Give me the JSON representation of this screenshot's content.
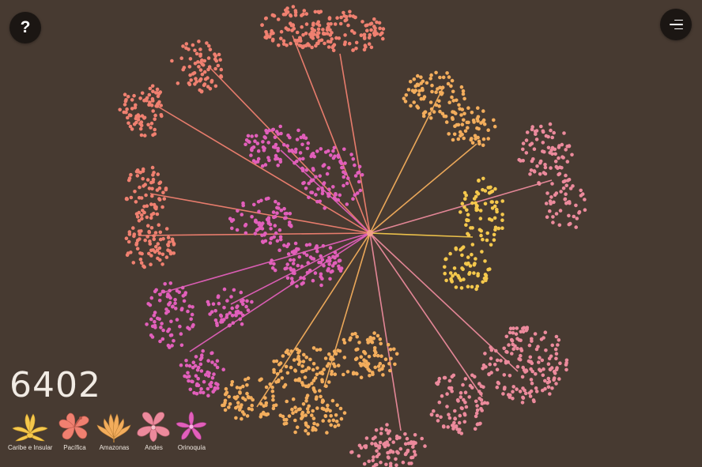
{
  "help": {
    "label": "?"
  },
  "count": "6402",
  "center_color": "#f3a08a",
  "regions": [
    {
      "key": "caribe",
      "label": "Caribe e Insular",
      "color": "#f5c84c",
      "icon": "orchid-icon"
    },
    {
      "key": "pacifica",
      "label": "Pacífica",
      "color": "#f08070",
      "icon": "hibiscus-icon"
    },
    {
      "key": "amazonas",
      "label": "Amazonas",
      "color": "#f3ad5c",
      "icon": "lily-icon"
    },
    {
      "key": "andes",
      "label": "Andes",
      "color": "#ec8a9c",
      "icon": "orchid-icon"
    },
    {
      "key": "orinoquia",
      "label": "Orinoquía",
      "color": "#e25fbb",
      "icon": "flower-icon"
    }
  ]
}
